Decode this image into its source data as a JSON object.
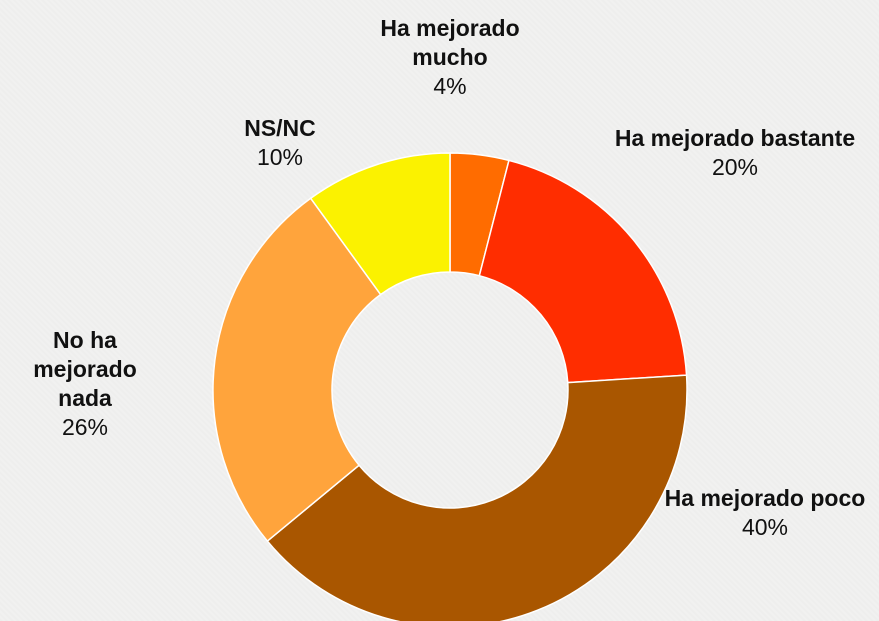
{
  "chart_data": {
    "type": "donut",
    "categories": [
      "Ha mejorado mucho",
      "Ha mejorado bastante",
      "Ha mejorado poco",
      "No ha mejorado nada",
      "NS/NC"
    ],
    "values": [
      4,
      20,
      40,
      26,
      10
    ],
    "value_labels": [
      "4%",
      "20%",
      "40%",
      "26%",
      "10%"
    ],
    "colors": [
      "#ff6c00",
      "#ff2d00",
      "#a95600",
      "#ffa43c",
      "#fbf200"
    ]
  }
}
